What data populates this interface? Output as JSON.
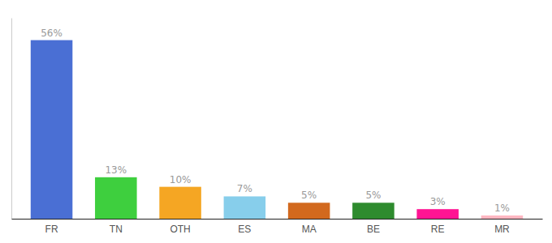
{
  "chart_data": {
    "type": "bar",
    "categories": [
      "FR",
      "TN",
      "OTH",
      "ES",
      "MA",
      "BE",
      "RE",
      "MR"
    ],
    "values": [
      56,
      13,
      10,
      7,
      5,
      5,
      3,
      1
    ],
    "value_labels": [
      "56%",
      "13%",
      "10%",
      "7%",
      "5%",
      "5%",
      "3%",
      "1%"
    ],
    "colors": [
      "#4a6fd4",
      "#3ecf3e",
      "#f5a623",
      "#87ceeb",
      "#d2691e",
      "#2e8b2e",
      "#ff1493",
      "#ffb6c1"
    ],
    "ylim": [
      0,
      63
    ],
    "data_labels": true,
    "tick_labels": "x",
    "grid": false
  }
}
